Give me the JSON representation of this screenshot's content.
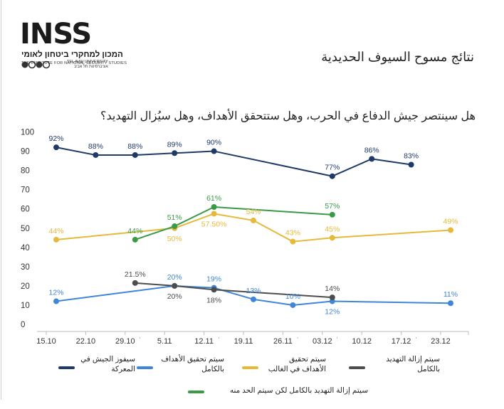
{
  "brand": {
    "logo_word": "INSS",
    "logo_hebrew": "המכון למחקרי ביטחון לאומי",
    "logo_english": "THE INSTITUTE FOR NATIONAL SECURITY STUDIES",
    "university_line1": "TEL AVIV UNIVERSITY",
    "university_line2": "אוניברסיטת תל אביב"
  },
  "page_title": "نتائج مسوح السيوف الحديدية",
  "question": "هل سينتصر جيش الدفاع في الحرب، وهل ستتحقق الأهداف، وهل سيُزال التهديد؟",
  "chart_data": {
    "type": "line",
    "categories": [
      "15.10",
      "22.10",
      "29.10",
      "5.11",
      "12.11",
      "19.11",
      "26.11",
      "03.12",
      "10.12",
      "17.12",
      "23.12"
    ],
    "category_marks": [
      "",
      "",
      "'",
      "",
      "'",
      "",
      "'",
      "'",
      "",
      "'",
      ""
    ],
    "yticks": [
      0,
      10,
      20,
      30,
      40,
      50,
      60,
      70,
      80,
      90,
      100
    ],
    "ylim": [
      0,
      100
    ],
    "grid": false,
    "legend_position": "bottom",
    "series": [
      {
        "name": "سيفوز الجيش في المعركة",
        "color": "#1f3a68",
        "values": [
          92,
          88,
          88,
          89,
          90,
          null,
          null,
          77,
          86,
          83,
          null
        ],
        "labels": [
          "92%",
          "88%",
          "88%",
          "89%",
          "90%",
          null,
          null,
          "77%",
          "86%",
          "83%",
          null
        ],
        "label_pos": [
          "above",
          "above",
          "above",
          "above",
          "above",
          null,
          null,
          "above",
          "above",
          "above",
          null
        ]
      },
      {
        "name": "سيتم تحقيق الأهداف بالكامل",
        "color": "#3f86d8",
        "values": [
          12,
          null,
          null,
          20,
          19,
          13,
          10,
          12,
          null,
          null,
          11
        ],
        "labels": [
          "12%",
          null,
          null,
          "20%",
          "19%",
          "13%",
          "10%",
          "12%",
          null,
          null,
          "11%"
        ],
        "label_pos": [
          "above",
          null,
          null,
          "above",
          "above",
          "above",
          "above",
          "below",
          null,
          null,
          "above"
        ]
      },
      {
        "name": "سيتم تحقيق الأهداف في الغالب",
        "color": "#e6b93a",
        "values": [
          44,
          null,
          null,
          50,
          57.5,
          54,
          43,
          45,
          null,
          null,
          49
        ],
        "labels": [
          "44%",
          null,
          null,
          "50%",
          "57.50%",
          "54%",
          "43%",
          "45%",
          null,
          null,
          "49%"
        ],
        "label_pos": [
          "above",
          null,
          null,
          "below",
          "below",
          "above",
          "above",
          "above",
          null,
          null,
          "above"
        ]
      },
      {
        "name": "سيتم إزالة التهديد بالكامل",
        "color": "#4d4d4d",
        "values": [
          null,
          null,
          21.5,
          20,
          18,
          null,
          null,
          14,
          null,
          null,
          null
        ],
        "labels": [
          null,
          null,
          "21.5%",
          "20%",
          "18%",
          null,
          null,
          "14%",
          null,
          null,
          null
        ],
        "label_pos": [
          null,
          null,
          "above",
          "below",
          "below",
          null,
          null,
          "above",
          null,
          null,
          null
        ]
      },
      {
        "name": "سيتم إزالة التهديد بالكامل لكن سيتم الحد منه",
        "color": "#3a9a48",
        "values": [
          null,
          null,
          44,
          51,
          61,
          null,
          null,
          57,
          null,
          null,
          null
        ],
        "labels": [
          null,
          null,
          "44%",
          "51%",
          "61%",
          null,
          null,
          "57%",
          null,
          null,
          null
        ],
        "label_pos": [
          null,
          null,
          "above",
          "above",
          "above",
          null,
          null,
          "above",
          null,
          null,
          null
        ]
      }
    ]
  }
}
